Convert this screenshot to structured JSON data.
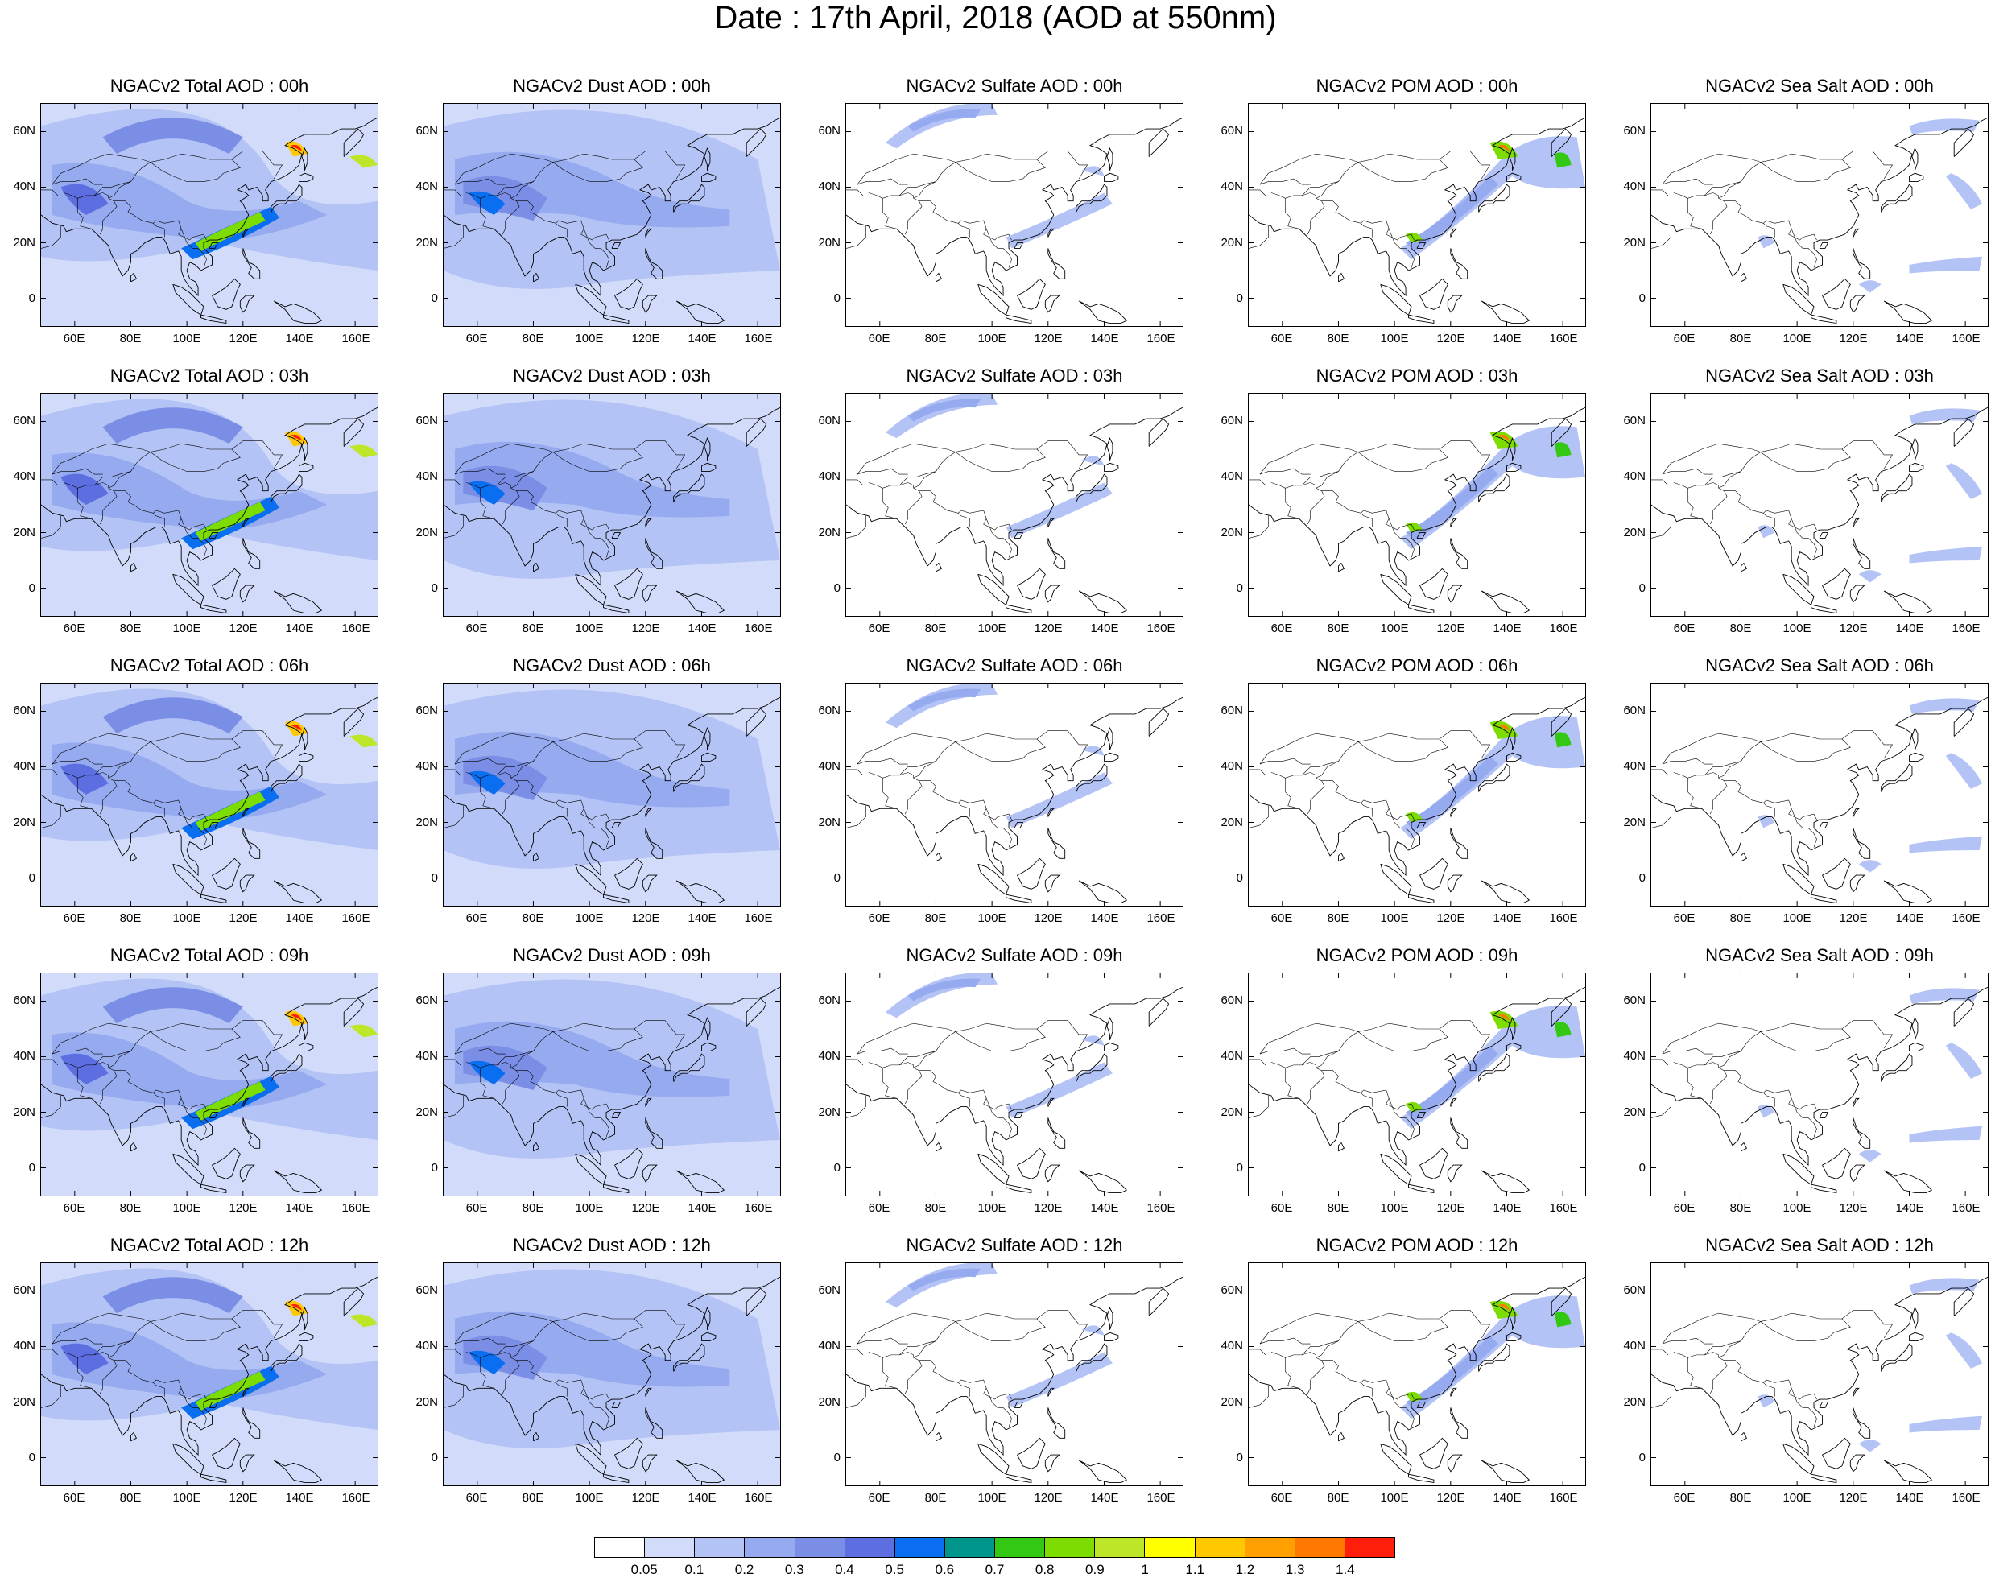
{
  "title": "Date : 17th April, 2018 (AOD at 550nm)",
  "lat_labels": [
    "60N",
    "40N",
    "20N",
    "0"
  ],
  "lon_labels": [
    "60E",
    "80E",
    "100E",
    "120E",
    "140E",
    "160E"
  ],
  "colorbar": {
    "labels": [
      "0.05",
      "0.1",
      "0.2",
      "0.3",
      "0.4",
      "0.5",
      "0.6",
      "0.7",
      "0.8",
      "0.9",
      "1",
      "1.1",
      "1.2",
      "1.3",
      "1.4"
    ],
    "colors": [
      "#ffffff",
      "#d2dcfa",
      "#b4c3f5",
      "#96aaf0",
      "#7a8ee6",
      "#5c6ee0",
      "#0a6ef0",
      "#00968c",
      "#32c814",
      "#7ddc00",
      "#bee628",
      "#ffff00",
      "#ffc800",
      "#ffa000",
      "#ff7800",
      "#ff1e0a"
    ]
  },
  "panels": [
    {
      "title": "NGACv2 Total AOD : 00h",
      "type": "total"
    },
    {
      "title": "NGACv2 Dust AOD : 00h",
      "type": "dust"
    },
    {
      "title": "NGACv2 Sulfate AOD : 00h",
      "type": "sulfate"
    },
    {
      "title": "NGACv2 POM AOD : 00h",
      "type": "pom"
    },
    {
      "title": "NGACv2 Sea Salt AOD : 00h",
      "type": "seasalt"
    },
    {
      "title": "NGACv2 Total AOD : 03h",
      "type": "total"
    },
    {
      "title": "NGACv2 Dust AOD : 03h",
      "type": "dust"
    },
    {
      "title": "NGACv2 Sulfate AOD : 03h",
      "type": "sulfate"
    },
    {
      "title": "NGACv2 POM AOD : 03h",
      "type": "pom"
    },
    {
      "title": "NGACv2 Sea Salt AOD : 03h",
      "type": "seasalt"
    },
    {
      "title": "NGACv2 Total AOD : 06h",
      "type": "total"
    },
    {
      "title": "NGACv2 Dust AOD : 06h",
      "type": "dust"
    },
    {
      "title": "NGACv2 Sulfate AOD : 06h",
      "type": "sulfate"
    },
    {
      "title": "NGACv2 POM AOD : 06h",
      "type": "pom"
    },
    {
      "title": "NGACv2 Sea Salt AOD : 06h",
      "type": "seasalt"
    },
    {
      "title": "NGACv2 Total AOD : 09h",
      "type": "total"
    },
    {
      "title": "NGACv2 Dust AOD : 09h",
      "type": "dust"
    },
    {
      "title": "NGACv2 Sulfate AOD : 09h",
      "type": "sulfate"
    },
    {
      "title": "NGACv2 POM AOD : 09h",
      "type": "pom"
    },
    {
      "title": "NGACv2 Sea Salt  AOD : 09h",
      "type": "seasalt"
    },
    {
      "title": "NGACv2 Total AOD  : 12h",
      "type": "total"
    },
    {
      "title": "NGACv2 Dust AOD : 12h",
      "type": "dust"
    },
    {
      "title": "NGACv2 Sulfate AOD : 12h",
      "type": "sulfate"
    },
    {
      "title": "NGACv2 POM  AOD : 12h",
      "type": "pom"
    },
    {
      "title": "NGACv2 Sea Salt  AOD : 12h",
      "type": "seasalt"
    }
  ]
}
